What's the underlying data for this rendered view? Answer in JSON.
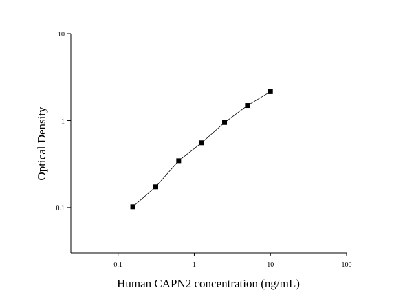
{
  "chart_data": {
    "type": "scatter",
    "x_label": "Human CAPN2 concentration (ng/mL)",
    "y_label": "Optical Density",
    "log_x": true,
    "log_y": true,
    "x": [
      0.156,
      0.3125,
      0.625,
      1.25,
      2.5,
      5,
      10
    ],
    "series": [
      {
        "color": "#000000",
        "values": [
          0.102,
          0.173,
          0.345,
          0.555,
          0.95,
          1.49,
          2.15
        ]
      }
    ],
    "connect": true,
    "xlim": [
      0.024,
      100
    ],
    "xticks": [
      0.1,
      1,
      10,
      100
    ],
    "ylim": [
      0.03,
      10
    ],
    "yticks": [
      0.1,
      1,
      10
    ]
  }
}
